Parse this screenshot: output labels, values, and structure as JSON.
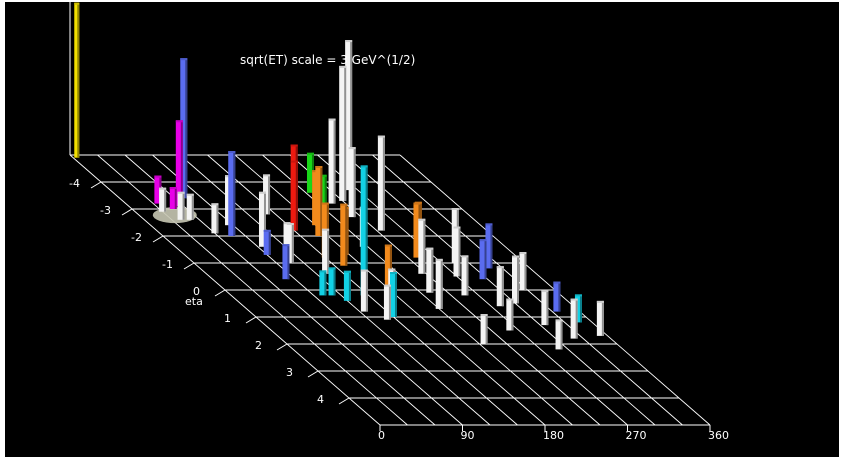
{
  "chart_data": {
    "type": "3d-lego-histogram",
    "title": "sqrt(ET) scale = 3 GeV^(1/2)",
    "xlabel": "",
    "ylabel": "eta",
    "x_axis": {
      "label": "",
      "ticks": [
        "0",
        "90",
        "180",
        "270",
        "360"
      ],
      "range": [
        0,
        360
      ]
    },
    "y_axis": {
      "label": "eta",
      "ticks": [
        "-4",
        "-3",
        "-2",
        "-1",
        "0",
        "1",
        "2",
        "3",
        "4"
      ],
      "range": [
        -5,
        5
      ]
    },
    "colors": {
      "background": "#000000",
      "grid": "#ffffff",
      "yellow": "#f2e000",
      "magenta": "#e800e8",
      "blue": "#5a6cf0",
      "cyan": "#12d2e6",
      "red": "#ee1a10",
      "orange": "#f28a1c",
      "green": "#19d719",
      "white": "#f4f4f4",
      "disk": "#c8c8b4"
    },
    "towers": [
      {
        "phi": 4,
        "eta": -4.9,
        "height": 155,
        "color": "yellow"
      },
      {
        "phi": 35,
        "eta": -3.2,
        "height": 28,
        "color": "magenta"
      },
      {
        "phi": 45,
        "eta": -3.0,
        "height": 22,
        "color": "magenta"
      },
      {
        "phi": 55,
        "eta": -3.1,
        "height": 86,
        "color": "magenta"
      },
      {
        "phi": 30,
        "eta": -2.9,
        "height": 24,
        "color": "white"
      },
      {
        "phi": 40,
        "eta": -2.6,
        "height": 28,
        "color": "white"
      },
      {
        "phi": 50,
        "eta": -2.6,
        "height": 26,
        "color": "white"
      },
      {
        "phi": 60,
        "eta": -2.1,
        "height": 30,
        "color": "white"
      },
      {
        "phi": 70,
        "eta": -3.4,
        "height": 140,
        "color": "blue"
      },
      {
        "phi": 75,
        "eta": -2.0,
        "height": 85,
        "color": "blue"
      },
      {
        "phi": 85,
        "eta": -2.4,
        "height": 50,
        "color": "white"
      },
      {
        "phi": 90,
        "eta": -1.3,
        "height": 25,
        "color": "blue"
      },
      {
        "phi": 80,
        "eta": -0.4,
        "height": 35,
        "color": "blue"
      },
      {
        "phi": 95,
        "eta": -1.6,
        "height": 55,
        "color": "white"
      },
      {
        "phi": 105,
        "eta": -1.0,
        "height": 40,
        "color": "white"
      },
      {
        "phi": 115,
        "eta": -1.4,
        "height": 30,
        "color": "white"
      },
      {
        "phi": 100,
        "eta": 0.2,
        "height": 25,
        "color": "cyan"
      },
      {
        "phi": 110,
        "eta": 0.2,
        "height": 28,
        "color": "cyan"
      },
      {
        "phi": 120,
        "eta": 0.4,
        "height": 30,
        "color": "cyan"
      },
      {
        "phi": 125,
        "eta": 0.8,
        "height": 42,
        "color": "white"
      },
      {
        "phi": 130,
        "eta": -0.6,
        "height": 45,
        "color": "white"
      },
      {
        "phi": 140,
        "eta": -2.8,
        "height": 40,
        "color": "white"
      },
      {
        "phi": 150,
        "eta": -2.2,
        "height": 70,
        "color": "red"
      },
      {
        "phi": 160,
        "eta": -2.5,
        "height": 78,
        "color": "red"
      },
      {
        "phi": 170,
        "eta": -2.0,
        "height": 70,
        "color": "orange"
      },
      {
        "phi": 180,
        "eta": -2.4,
        "height": 55,
        "color": "orange"
      },
      {
        "phi": 150,
        "eta": -1.2,
        "height": 55,
        "color": "orange"
      },
      {
        "phi": 160,
        "eta": -0.9,
        "height": 62,
        "color": "orange"
      },
      {
        "phi": 175,
        "eta": -1.3,
        "height": 48,
        "color": "orange"
      },
      {
        "phi": 185,
        "eta": -0.2,
        "height": 40,
        "color": "orange"
      },
      {
        "phi": 145,
        "eta": 0.2,
        "height": 130,
        "color": "cyan"
      },
      {
        "phi": 150,
        "eta": 1.0,
        "height": 45,
        "color": "cyan"
      },
      {
        "phi": 140,
        "eta": 1.1,
        "height": 35,
        "color": "white"
      },
      {
        "phi": 165,
        "eta": 0.5,
        "height": 35,
        "color": "white"
      },
      {
        "phi": 195,
        "eta": -2.6,
        "height": 45,
        "color": "green"
      },
      {
        "phi": 205,
        "eta": -1.6,
        "height": 40,
        "color": "white"
      },
      {
        "phi": 215,
        "eta": -3.6,
        "height": 40,
        "color": "green"
      },
      {
        "phi": 225,
        "eta": -3.2,
        "height": 85,
        "color": "white"
      },
      {
        "phi": 230,
        "eta": -2.7,
        "height": 70,
        "color": "white"
      },
      {
        "phi": 240,
        "eta": -3.3,
        "height": 135,
        "color": "white"
      },
      {
        "phi": 245,
        "eta": -2.2,
        "height": 95,
        "color": "white"
      },
      {
        "phi": 260,
        "eta": -3.7,
        "height": 150,
        "color": "white"
      },
      {
        "phi": 250,
        "eta": -1.2,
        "height": 55,
        "color": "orange"
      },
      {
        "phi": 265,
        "eta": -1.6,
        "height": 45,
        "color": "orange"
      },
      {
        "phi": 235,
        "eta": -0.6,
        "height": 55,
        "color": "white"
      },
      {
        "phi": 220,
        "eta": 0.1,
        "height": 45,
        "color": "white"
      },
      {
        "phi": 210,
        "eta": 0.7,
        "height": 50,
        "color": "white"
      },
      {
        "phi": 255,
        "eta": 0.2,
        "height": 40,
        "color": "white"
      },
      {
        "phi": 270,
        "eta": -0.5,
        "height": 50,
        "color": "white"
      },
      {
        "phi": 285,
        "eta": -1.0,
        "height": 55,
        "color": "white"
      },
      {
        "phi": 295,
        "eta": -0.4,
        "height": 40,
        "color": "blue"
      },
      {
        "phi": 280,
        "eta": 0.6,
        "height": 40,
        "color": "white"
      },
      {
        "phi": 300,
        "eta": 0.5,
        "height": 48,
        "color": "white"
      },
      {
        "phi": 305,
        "eta": 1.3,
        "height": 35,
        "color": "white"
      },
      {
        "phi": 315,
        "eta": -0.8,
        "height": 45,
        "color": "blue"
      },
      {
        "phi": 325,
        "eta": 0.0,
        "height": 38,
        "color": "white"
      },
      {
        "phi": 335,
        "eta": 0.8,
        "height": 30,
        "color": "blue"
      },
      {
        "phi": 345,
        "eta": 1.2,
        "height": 28,
        "color": "cyan"
      },
      {
        "phi": 320,
        "eta": 1.8,
        "height": 40,
        "color": "white"
      },
      {
        "phi": 352,
        "eta": 1.7,
        "height": 35,
        "color": "white"
      },
      {
        "phi": 290,
        "eta": 2.2,
        "height": 30,
        "color": "white"
      },
      {
        "phi": 215,
        "eta": 2.0,
        "height": 30,
        "color": "white"
      },
      {
        "phi": 260,
        "eta": 1.5,
        "height": 32,
        "color": "white"
      }
    ]
  }
}
